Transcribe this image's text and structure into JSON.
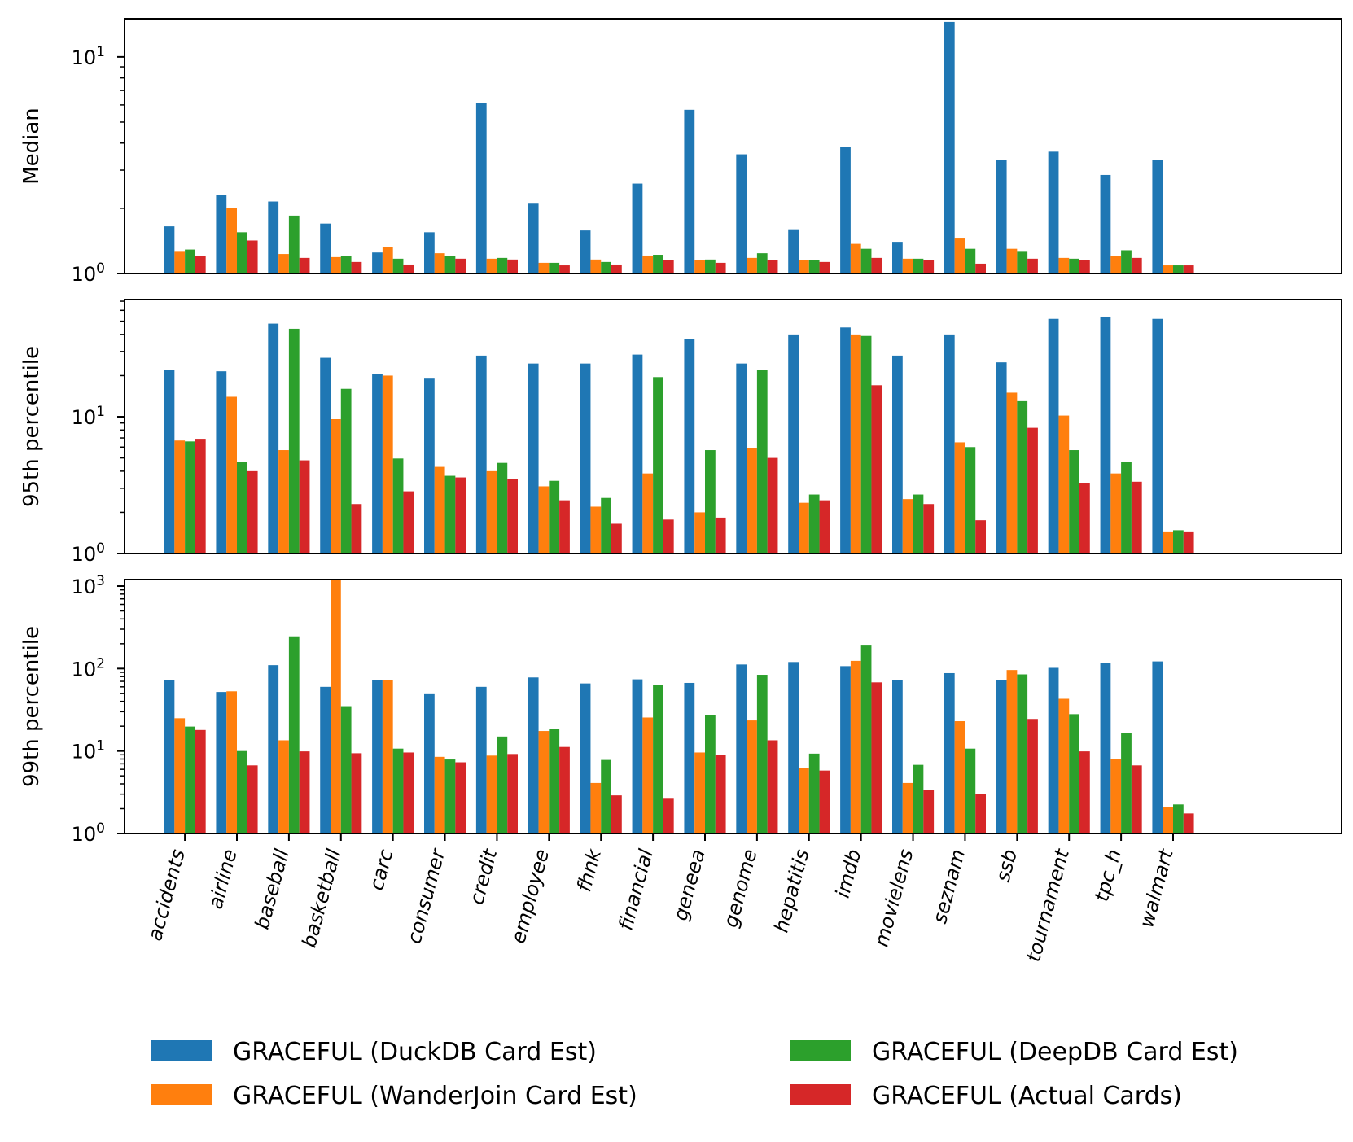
{
  "chart_data": {
    "type": "bar",
    "scale": "log",
    "categories": [
      "accidents",
      "airline",
      "baseball",
      "basketball",
      "carc",
      "consumer",
      "credit",
      "employee",
      "fhnk",
      "financial",
      "geneea",
      "genome",
      "hepatitis",
      "imdb",
      "movielens",
      "seznam",
      "ssb",
      "tournament",
      "tpc_h",
      "walmart"
    ],
    "series_names": [
      "GRACEFUL (DuckDB Card Est)",
      "GRACEFUL (WanderJoin Card Est)",
      "GRACEFUL (DeepDB Card Est)",
      "GRACEFUL (Actual Cards)"
    ],
    "series_colors": [
      "#1f77b4",
      "#ff7f0e",
      "#2ca02c",
      "#d62728"
    ],
    "panels": [
      {
        "ylabel": "Median",
        "ylim": [
          1,
          15
        ],
        "ticks": [
          {
            "value": 1,
            "base": "10",
            "exp": "0"
          },
          {
            "value": 10,
            "base": "10",
            "exp": "1"
          }
        ],
        "series": [
          {
            "name": "GRACEFUL (DuckDB Card Est)",
            "values": [
              1.65,
              2.3,
              2.15,
              1.7,
              1.25,
              1.55,
              6.1,
              2.1,
              1.58,
              2.6,
              5.7,
              3.55,
              1.6,
              3.85,
              1.4,
              14.5,
              3.35,
              3.65,
              2.85,
              3.35
            ]
          },
          {
            "name": "GRACEFUL (WanderJoin Card Est)",
            "values": [
              1.27,
              2.0,
              1.23,
              1.19,
              1.32,
              1.24,
              1.17,
              1.12,
              1.16,
              1.21,
              1.15,
              1.18,
              1.15,
              1.37,
              1.17,
              1.45,
              1.3,
              1.18,
              1.2,
              1.09
            ]
          },
          {
            "name": "GRACEFUL (DeepDB Card Est)",
            "values": [
              1.29,
              1.55,
              1.85,
              1.2,
              1.17,
              1.2,
              1.18,
              1.12,
              1.13,
              1.22,
              1.16,
              1.24,
              1.15,
              1.3,
              1.17,
              1.3,
              1.27,
              1.17,
              1.28,
              1.09
            ]
          },
          {
            "name": "GRACEFUL (Actual Cards)",
            "values": [
              1.2,
              1.42,
              1.18,
              1.13,
              1.1,
              1.17,
              1.16,
              1.09,
              1.1,
              1.15,
              1.12,
              1.15,
              1.13,
              1.18,
              1.15,
              1.11,
              1.17,
              1.15,
              1.18,
              1.09
            ]
          }
        ]
      },
      {
        "ylabel": "95th percentile",
        "ylim": [
          1,
          72
        ],
        "ticks": [
          {
            "value": 1,
            "base": "10",
            "exp": "0"
          },
          {
            "value": 10,
            "base": "10",
            "exp": "1"
          }
        ],
        "series": [
          {
            "name": "GRACEFUL (DuckDB Card Est)",
            "values": [
              22,
              21.5,
              48,
              27,
              20.5,
              19,
              28,
              24.5,
              24.5,
              28.5,
              37,
              24.5,
              40,
              45,
              28,
              40,
              25,
              52,
              54,
              52
            ]
          },
          {
            "name": "GRACEFUL (WanderJoin Card Est)",
            "values": [
              6.7,
              14,
              5.7,
              9.6,
              20,
              4.3,
              4.0,
              3.1,
              2.2,
              3.85,
              2.0,
              5.9,
              2.35,
              40,
              2.5,
              6.5,
              15,
              10.2,
              3.85,
              1.45
            ]
          },
          {
            "name": "GRACEFUL (DeepDB Card Est)",
            "values": [
              6.6,
              4.7,
              44,
              16,
              4.95,
              3.7,
              4.6,
              3.4,
              2.55,
              19.5,
              5.7,
              22,
              2.7,
              39,
              2.7,
              6.0,
              13,
              5.7,
              4.7,
              1.48
            ]
          },
          {
            "name": "GRACEFUL (Actual Cards)",
            "values": [
              6.9,
              4.0,
              4.8,
              2.3,
              2.85,
              3.6,
              3.5,
              2.45,
              1.65,
              1.77,
              1.83,
              5.0,
              2.45,
              17,
              2.3,
              1.75,
              8.3,
              3.25,
              3.35,
              1.45
            ]
          }
        ]
      },
      {
        "ylabel": "99th percentile",
        "ylim": [
          1,
          1200
        ],
        "ticks": [
          {
            "value": 1,
            "base": "10",
            "exp": "0"
          },
          {
            "value": 10,
            "base": "10",
            "exp": "1"
          },
          {
            "value": 100,
            "base": "10",
            "exp": "2"
          },
          {
            "value": 1000,
            "base": "10",
            "exp": "3"
          }
        ],
        "series": [
          {
            "name": "GRACEFUL (DuckDB Card Est)",
            "values": [
              72,
              52,
              110,
              60,
              72,
              50,
              60,
              78,
              66,
              74,
              67,
              112,
              120,
              107,
              73,
              88,
              72,
              102,
              118,
              122
            ]
          },
          {
            "name": "GRACEFUL (WanderJoin Card Est)",
            "values": [
              25,
              53,
              13.5,
              1200,
              72,
              8.5,
              8.8,
              17.5,
              4.1,
              25.5,
              9.6,
              23.5,
              6.3,
              124,
              4.1,
              23,
              96,
              43,
              8,
              2.1
            ]
          },
          {
            "name": "GRACEFUL (DeepDB Card Est)",
            "values": [
              19.8,
              10,
              246,
              35,
              10.7,
              7.9,
              15,
              18.5,
              7.8,
              63,
              27,
              84,
              9.3,
              190,
              6.8,
              10.7,
              85,
              28,
              16.5,
              2.25
            ]
          },
          {
            "name": "GRACEFUL (Actual Cards)",
            "values": [
              18,
              6.7,
              9.9,
              9.4,
              9.6,
              7.3,
              9.2,
              11.2,
              2.9,
              2.7,
              8.9,
              13.5,
              5.8,
              68,
              3.4,
              3.0,
              24.5,
              9.9,
              6.7,
              1.75
            ]
          }
        ]
      }
    ]
  }
}
